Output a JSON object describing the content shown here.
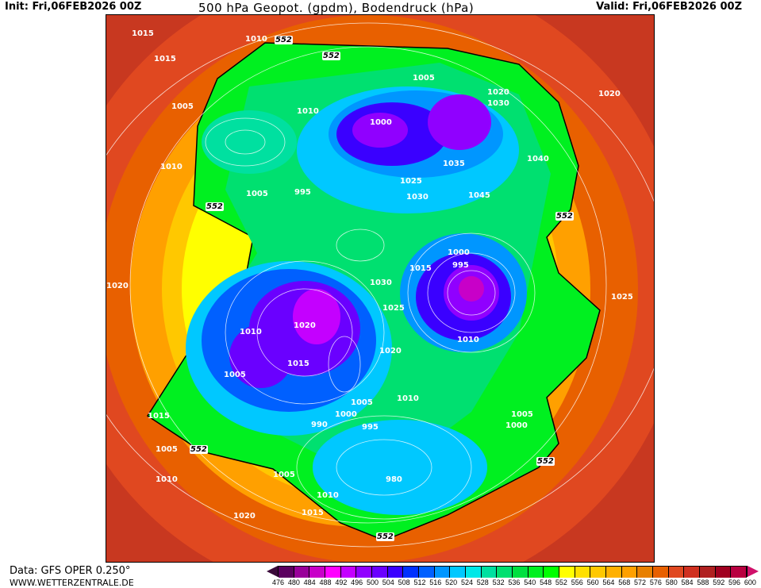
{
  "header": {
    "init": "Init: Fri,06FEB2026 00Z",
    "title": "500 hPa Geopot. (gpdm), Bodendruck (hPa)",
    "valid": "Valid: Fri,06FEB2026 00Z"
  },
  "footer": {
    "source": "Data: GFS OPER 0.250°",
    "site": "WWW.WETTERZENTRALE.DE"
  },
  "legend": {
    "ticks": [
      "476",
      "480",
      "484",
      "488",
      "492",
      "496",
      "500",
      "504",
      "508",
      "512",
      "516",
      "520",
      "524",
      "528",
      "532",
      "536",
      "540",
      "548",
      "552",
      "556",
      "560",
      "564",
      "568",
      "572",
      "576",
      "580",
      "584",
      "588",
      "592",
      "596",
      "600"
    ],
    "colors": [
      "#5c0060",
      "#99009a",
      "#c800c8",
      "#ff00ff",
      "#c400ff",
      "#9000ff",
      "#6a00ff",
      "#3a00ff",
      "#0030ff",
      "#0060ff",
      "#0096ff",
      "#00c8ff",
      "#00e8e8",
      "#00e0a0",
      "#00e070",
      "#00e040",
      "#00f020",
      "#00ff00",
      "#ffff00",
      "#ffe000",
      "#ffc800",
      "#ffb000",
      "#ffa000",
      "#e88000",
      "#e86000",
      "#e04820",
      "#d03020",
      "#b02020",
      "#a00020",
      "#b80040"
    ],
    "low_arrow": "#3a0a3a",
    "high_arrow": "#d0106a"
  },
  "map": {
    "contour_label": "552",
    "isobars": [
      "1015",
      "1010",
      "1015",
      "1005",
      "1010",
      "1005",
      "1010",
      "1000",
      "1005",
      "995",
      "1030",
      "1040",
      "1035",
      "1045",
      "1020",
      "1025",
      "1030",
      "995",
      "1000",
      "1010",
      "1015",
      "1025",
      "1030",
      "1020",
      "1020",
      "1015",
      "1010",
      "1005",
      "1020",
      "1015",
      "1010",
      "1005",
      "1000",
      "990",
      "995",
      "980",
      "1005",
      "1010",
      "1020",
      "1015",
      "1010",
      "1005",
      "1005",
      "1000",
      "1020",
      "1025"
    ]
  }
}
